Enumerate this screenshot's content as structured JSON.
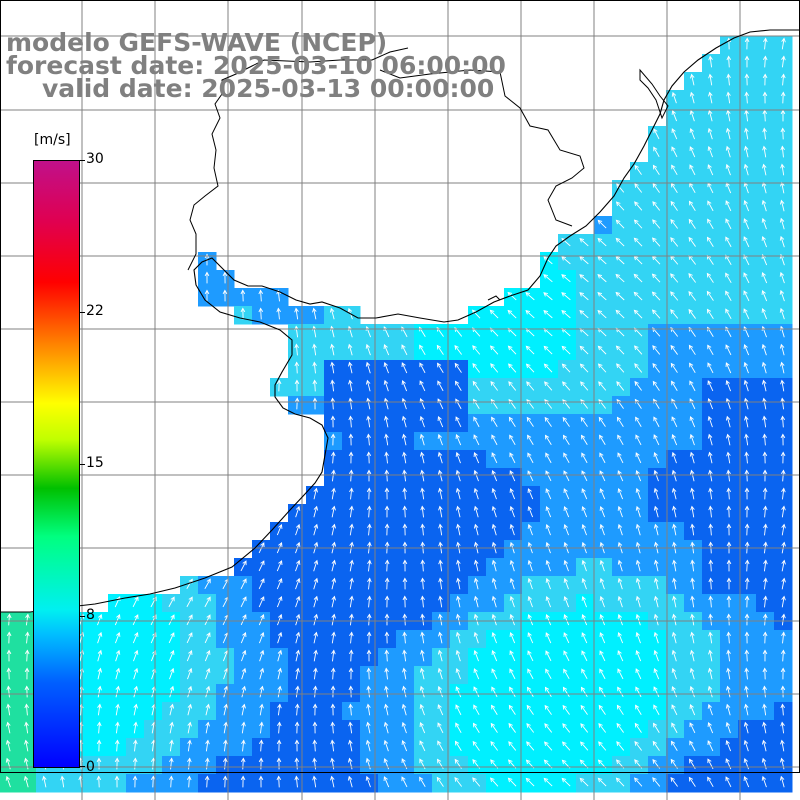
{
  "title": {
    "line1": "modelo GEFS-WAVE (NCEP)",
    "line2": "forecast date: 2025-03-10 06:00:00",
    "line3": "valid date: 2025-03-13 00:00:00"
  },
  "colorbar": {
    "unit": "[m/s]",
    "ticks": [
      "30",
      "22",
      "15",
      "8",
      "0"
    ],
    "tick_values": [
      30,
      22,
      15,
      8,
      0
    ],
    "min": 0,
    "max": 30
  },
  "map": {
    "variable": "wind speed and direction (arrows)",
    "land_color": "#ffffff",
    "coastline_color": "#000000",
    "grid_color": "#808080",
    "arrow_color": "#ffffff",
    "dominant_field_colors": [
      "#0a64f0",
      "#1e9bff",
      "#33d4f4",
      "#00f0ff",
      "#1fe0a0"
    ],
    "prevailing_arrow_direction": "toward north / north-west"
  }
}
